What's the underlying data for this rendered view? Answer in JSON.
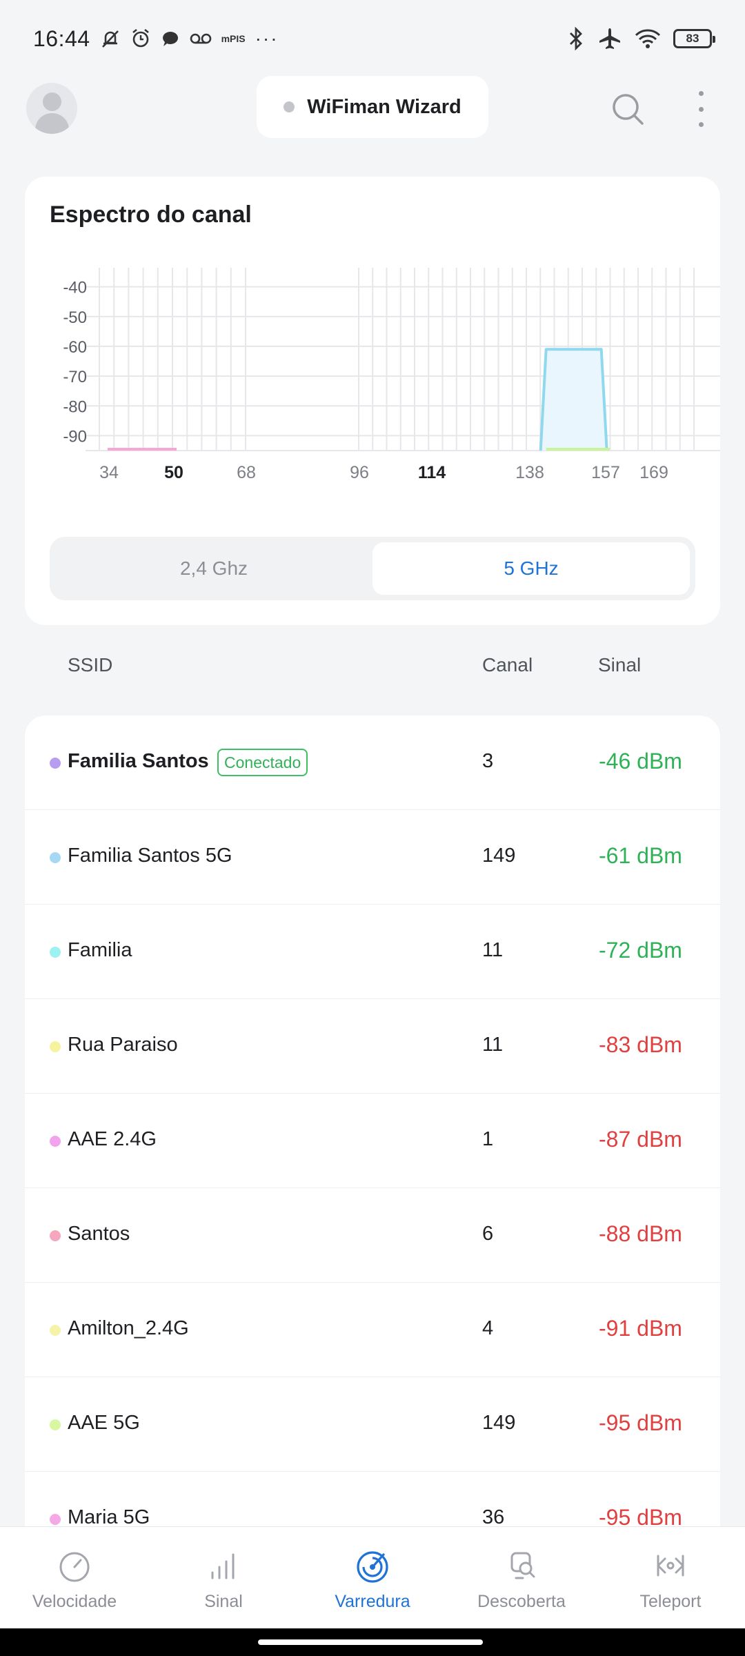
{
  "status_bar": {
    "time": "16:44",
    "icons_left": [
      "bell-off-icon",
      "alarm-icon",
      "chat-icon",
      "voicemail-icon"
    ],
    "mpis_label": "mPIS",
    "more_label": "···",
    "icons_right": [
      "bluetooth-icon",
      "airplane-icon",
      "wifi-icon"
    ],
    "battery": "83"
  },
  "header": {
    "wizard_label": "WiFiman Wizard"
  },
  "spectrum": {
    "title": "Espectro do canal",
    "band_options": [
      "2,4 Ghz",
      "5 GHz"
    ],
    "active_band": "5 GHz"
  },
  "chart_data": {
    "type": "area",
    "title": "Espectro do canal",
    "y_ticks": [
      -40,
      -50,
      -60,
      -70,
      -80,
      -90
    ],
    "ylim": [
      -95,
      -35
    ],
    "x_ticks": [
      {
        "label": "34",
        "bold": false
      },
      {
        "label": "50",
        "bold": true
      },
      {
        "label": "68",
        "bold": false
      },
      {
        "label": "96",
        "bold": false
      },
      {
        "label": "114",
        "bold": true
      },
      {
        "label": "138",
        "bold": false
      },
      {
        "label": "157",
        "bold": false
      },
      {
        "label": "169",
        "bold": false
      }
    ],
    "series": [
      {
        "name": "Familia Santos 5G",
        "channel": 149,
        "signal": -61,
        "color": "#8fd8ee"
      },
      {
        "name": "AAE 5G",
        "channel": 149,
        "signal": -95,
        "color": "#c9f59a"
      },
      {
        "name": "Maria 5G",
        "channel": 36,
        "signal": -95,
        "color": "#f5a7d6"
      }
    ],
    "grid": true
  },
  "table": {
    "headers": {
      "ssid": "SSID",
      "canal": "Canal",
      "sinal": "Sinal"
    },
    "connected_badge": "Conectado",
    "rows": [
      {
        "ssid": "Familia Santos",
        "channel": "3",
        "signal": "-46 dBm",
        "dot_color": "#b79cf0",
        "signal_color": "#2fb257",
        "connected": true
      },
      {
        "ssid": "Familia Santos 5G",
        "channel": "149",
        "signal": "-61 dBm",
        "dot_color": "#a6d8f4",
        "signal_color": "#2fb257",
        "connected": false
      },
      {
        "ssid": "Familia",
        "channel": "11",
        "signal": "-72 dBm",
        "dot_color": "#9ff0f2",
        "signal_color": "#2fb257",
        "connected": false
      },
      {
        "ssid": "Rua Paraiso",
        "channel": "11",
        "signal": "-83 dBm",
        "dot_color": "#f6f3a0",
        "signal_color": "#e0403f",
        "connected": false
      },
      {
        "ssid": "AAE 2.4G",
        "channel": "1",
        "signal": "-87 dBm",
        "dot_color": "#f1a3ee",
        "signal_color": "#e0403f",
        "connected": false
      },
      {
        "ssid": "Santos",
        "channel": "6",
        "signal": "-88 dBm",
        "dot_color": "#f4a7bd",
        "signal_color": "#e0403f",
        "connected": false
      },
      {
        "ssid": "Amilton_2.4G",
        "channel": "4",
        "signal": "-91 dBm",
        "dot_color": "#f5f3aa",
        "signal_color": "#e0403f",
        "connected": false
      },
      {
        "ssid": "AAE 5G",
        "channel": "149",
        "signal": "-95 dBm",
        "dot_color": "#d8f7a0",
        "signal_color": "#e0403f",
        "connected": false
      },
      {
        "ssid": "Maria 5G",
        "channel": "36",
        "signal": "-95 dBm",
        "dot_color": "#f5a7e6",
        "signal_color": "#e0403f",
        "connected": false
      }
    ]
  },
  "bottom_nav": {
    "items": [
      {
        "label": "Velocidade",
        "icon": "speedometer-icon",
        "active": false
      },
      {
        "label": "Sinal",
        "icon": "signal-bars-icon",
        "active": false
      },
      {
        "label": "Varredura",
        "icon": "radar-icon",
        "active": true
      },
      {
        "label": "Descoberta",
        "icon": "discovery-icon",
        "active": false
      },
      {
        "label": "Teleport",
        "icon": "teleport-icon",
        "active": false
      }
    ],
    "accent": "#1f73d6",
    "inactive": "#8b8e95"
  }
}
